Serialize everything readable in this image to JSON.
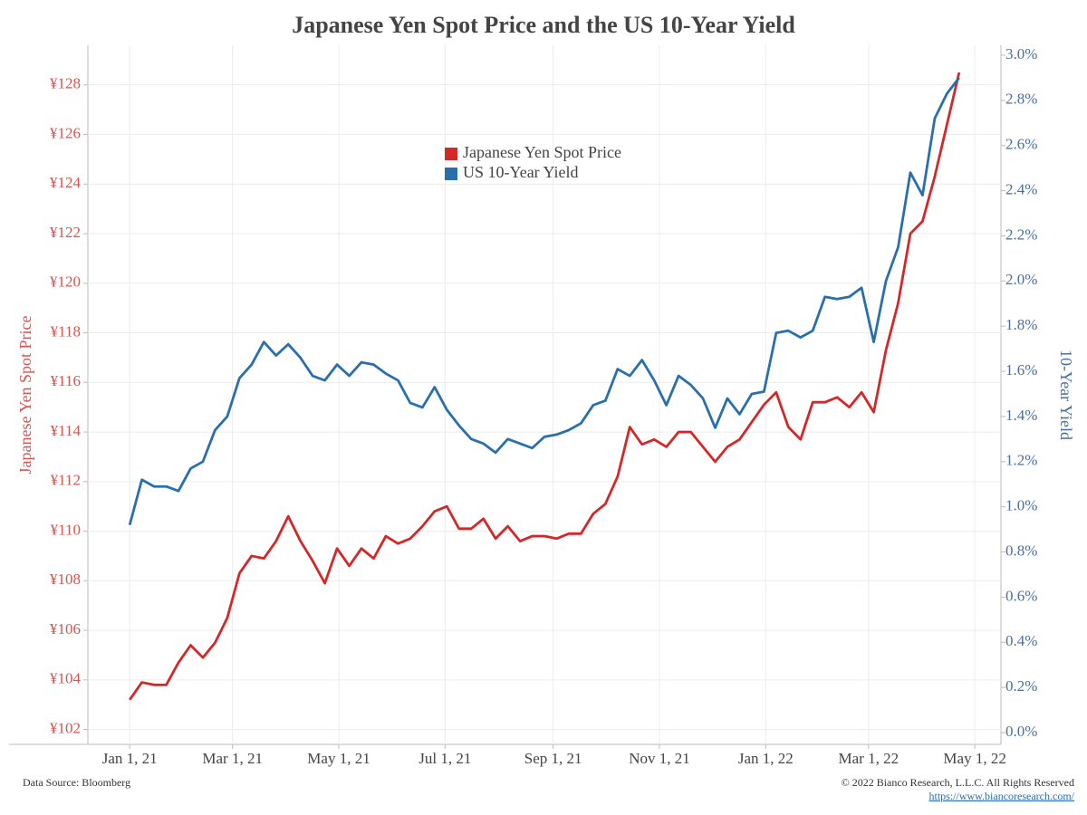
{
  "chart_data": {
    "type": "line",
    "title": "Japanese Yen Spot Price and the US 10-Year Yield",
    "ylabel": "Japanese Yen Spot Price",
    "y2label": "10-Year Yield",
    "source": "Data Source: Bloomberg",
    "copyright": "© 2022 Bianco Research, L.L.C. All Rights Reserved",
    "url": "https://www.biancoresearch.com/",
    "grid": true,
    "x": [
      "2021-01-01",
      "2021-01-08",
      "2021-01-15",
      "2021-01-22",
      "2021-01-29",
      "2021-02-05",
      "2021-02-12",
      "2021-02-19",
      "2021-02-26",
      "2021-03-05",
      "2021-03-12",
      "2021-03-19",
      "2021-03-26",
      "2021-04-02",
      "2021-04-09",
      "2021-04-16",
      "2021-04-23",
      "2021-04-30",
      "2021-05-07",
      "2021-05-14",
      "2021-05-21",
      "2021-05-28",
      "2021-06-04",
      "2021-06-11",
      "2021-06-18",
      "2021-06-25",
      "2021-07-02",
      "2021-07-09",
      "2021-07-16",
      "2021-07-23",
      "2021-07-30",
      "2021-08-06",
      "2021-08-13",
      "2021-08-20",
      "2021-08-27",
      "2021-09-03",
      "2021-09-10",
      "2021-09-17",
      "2021-09-24",
      "2021-10-01",
      "2021-10-08",
      "2021-10-15",
      "2021-10-22",
      "2021-10-29",
      "2021-11-05",
      "2021-11-12",
      "2021-11-19",
      "2021-11-26",
      "2021-12-03",
      "2021-12-10",
      "2021-12-17",
      "2021-12-24",
      "2021-12-31",
      "2022-01-07",
      "2022-01-14",
      "2022-01-21",
      "2022-01-28",
      "2022-02-04",
      "2022-02-11",
      "2022-02-18",
      "2022-02-25",
      "2022-03-04",
      "2022-03-11",
      "2022-03-18",
      "2022-03-25",
      "2022-04-01",
      "2022-04-08",
      "2022-04-15",
      "2022-04-22"
    ],
    "series": [
      {
        "name": "Japanese Yen Spot Price",
        "color": "#d62728",
        "values": [
          103.2,
          103.9,
          103.8,
          103.8,
          104.7,
          105.4,
          104.9,
          105.5,
          106.5,
          108.3,
          109.0,
          108.9,
          109.6,
          110.6,
          109.6,
          108.8,
          107.9,
          109.3,
          108.6,
          109.3,
          108.9,
          109.8,
          109.5,
          109.7,
          110.2,
          110.8,
          111.0,
          110.1,
          110.1,
          110.5,
          109.7,
          110.2,
          109.6,
          109.8,
          109.8,
          109.7,
          109.9,
          109.9,
          110.7,
          111.1,
          112.2,
          114.2,
          113.5,
          113.7,
          113.4,
          114.0,
          114.0,
          113.4,
          112.8,
          113.4,
          113.7,
          114.4,
          115.1,
          115.6,
          114.2,
          113.7,
          115.2,
          115.2,
          115.4,
          115.0,
          115.6,
          114.8,
          117.3,
          119.2,
          122.0,
          122.5,
          124.3,
          126.4,
          128.5
        ]
      },
      {
        "name": "US 10-Year Yield",
        "color": "#2a6fad",
        "axis": "y2",
        "values": [
          0.92,
          1.12,
          1.09,
          1.09,
          1.07,
          1.17,
          1.2,
          1.34,
          1.4,
          1.57,
          1.63,
          1.73,
          1.67,
          1.72,
          1.66,
          1.58,
          1.56,
          1.63,
          1.58,
          1.64,
          1.63,
          1.59,
          1.56,
          1.46,
          1.44,
          1.53,
          1.43,
          1.36,
          1.3,
          1.28,
          1.24,
          1.3,
          1.28,
          1.26,
          1.31,
          1.32,
          1.34,
          1.37,
          1.45,
          1.47,
          1.61,
          1.58,
          1.65,
          1.56,
          1.45,
          1.58,
          1.54,
          1.48,
          1.35,
          1.48,
          1.41,
          1.5,
          1.51,
          1.77,
          1.78,
          1.75,
          1.78,
          1.93,
          1.92,
          1.93,
          1.97,
          1.73,
          2.0,
          2.15,
          2.48,
          2.38,
          2.72,
          2.83,
          2.9
        ]
      }
    ],
    "xlim": [
      "2020-12-08",
      "2022-05-16"
    ],
    "xticks": [
      {
        "value": "2021-01-01",
        "label": "Jan 1, 21"
      },
      {
        "value": "2021-03-01",
        "label": "Mar 1, 21"
      },
      {
        "value": "2021-05-01",
        "label": "May 1, 21"
      },
      {
        "value": "2021-07-01",
        "label": "Jul 1, 21"
      },
      {
        "value": "2021-09-01",
        "label": "Sep 1, 21"
      },
      {
        "value": "2021-11-01",
        "label": "Nov 1, 21"
      },
      {
        "value": "2022-01-01",
        "label": "Jan 1, 22"
      },
      {
        "value": "2022-03-01",
        "label": "Mar 1, 22"
      },
      {
        "value": "2022-05-01",
        "label": "May 1, 22"
      }
    ],
    "ylim": [
      101.4,
      129.6
    ],
    "yticks": [
      {
        "value": 102,
        "label": "¥102"
      },
      {
        "value": 104,
        "label": "¥104"
      },
      {
        "value": 106,
        "label": "¥106"
      },
      {
        "value": 108,
        "label": "¥108"
      },
      {
        "value": 110,
        "label": "¥110"
      },
      {
        "value": 112,
        "label": "¥112"
      },
      {
        "value": 114,
        "label": "¥114"
      },
      {
        "value": 116,
        "label": "¥116"
      },
      {
        "value": 118,
        "label": "¥118"
      },
      {
        "value": 120,
        "label": "¥120"
      },
      {
        "value": 122,
        "label": "¥122"
      },
      {
        "value": 124,
        "label": "¥124"
      },
      {
        "value": 126,
        "label": "¥126"
      },
      {
        "value": 128,
        "label": "¥128"
      }
    ],
    "y2lim": [
      -0.052,
      3.044
    ],
    "y2ticks": [
      {
        "value": 0,
        "label": "0.0%"
      },
      {
        "value": 0.2,
        "label": "0.2%"
      },
      {
        "value": 0.4,
        "label": "0.4%"
      },
      {
        "value": 0.6,
        "label": "0.6%"
      },
      {
        "value": 0.8,
        "label": "0.8%"
      },
      {
        "value": 1.0,
        "label": "1.0%"
      },
      {
        "value": 1.2,
        "label": "1.2%"
      },
      {
        "value": 1.4,
        "label": "1.4%"
      },
      {
        "value": 1.6,
        "label": "1.6%"
      },
      {
        "value": 1.8,
        "label": "1.8%"
      },
      {
        "value": 2.0,
        "label": "2.0%"
      },
      {
        "value": 2.2,
        "label": "2.2%"
      },
      {
        "value": 2.4,
        "label": "2.4%"
      },
      {
        "value": 2.6,
        "label": "2.6%"
      },
      {
        "value": 2.8,
        "label": "2.8%"
      },
      {
        "value": 3.0,
        "label": "3.0%"
      }
    ]
  }
}
